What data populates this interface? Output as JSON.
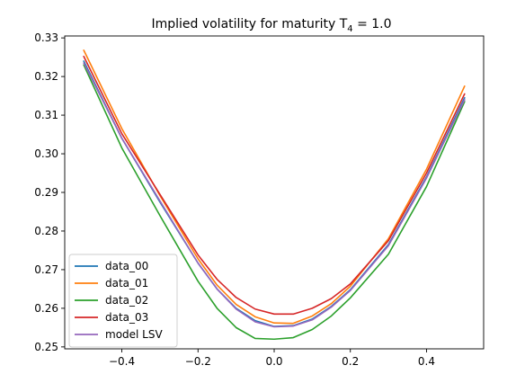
{
  "chart_data": {
    "type": "line",
    "title_prefix": "Implied volatility for maturity T",
    "title_subscript": "4",
    "title_suffix": " = 1.0",
    "xlabel": "",
    "ylabel": "",
    "xlim": [
      -0.55,
      0.55
    ],
    "ylim": [
      0.2495,
      0.3305
    ],
    "xticks": [
      -0.4,
      -0.2,
      0.0,
      0.2,
      0.4
    ],
    "xtick_labels": [
      "−0.4",
      "−0.2",
      "0.0",
      "0.2",
      "0.4"
    ],
    "yticks": [
      0.25,
      0.26,
      0.27,
      0.28,
      0.29,
      0.3,
      0.31,
      0.32,
      0.33
    ],
    "ytick_labels": [
      "0.25",
      "0.26",
      "0.27",
      "0.28",
      "0.29",
      "0.30",
      "0.31",
      "0.32",
      "0.33"
    ],
    "grid": false,
    "legend_position": "lower-left",
    "x": [
      -0.5,
      -0.4,
      -0.3,
      -0.2,
      -0.15,
      -0.1,
      -0.05,
      0.0,
      0.05,
      0.1,
      0.15,
      0.2,
      0.3,
      0.4,
      0.5
    ],
    "series": [
      {
        "name": "data_00",
        "color": "#1f77b4",
        "values": [
          0.324,
          0.304,
          0.2875,
          0.2717,
          0.265,
          0.26,
          0.2568,
          0.2553,
          0.2555,
          0.2572,
          0.2605,
          0.2648,
          0.2765,
          0.294,
          0.3145
        ]
      },
      {
        "name": "data_01",
        "color": "#ff7f0e",
        "values": [
          0.3268,
          0.3065,
          0.2892,
          0.2728,
          0.266,
          0.261,
          0.2578,
          0.2562,
          0.2561,
          0.258,
          0.2612,
          0.2657,
          0.278,
          0.296,
          0.3175
        ]
      },
      {
        "name": "data_02",
        "color": "#2ca02c",
        "values": [
          0.323,
          0.3015,
          0.284,
          0.267,
          0.26,
          0.255,
          0.2522,
          0.252,
          0.2524,
          0.2545,
          0.258,
          0.2627,
          0.274,
          0.2915,
          0.3135
        ]
      },
      {
        "name": "data_03",
        "color": "#d62728",
        "values": [
          0.3252,
          0.3052,
          0.2895,
          0.2738,
          0.2675,
          0.2628,
          0.2598,
          0.2585,
          0.2585,
          0.26,
          0.2625,
          0.2663,
          0.2775,
          0.295,
          0.3155
        ]
      },
      {
        "name": "model LSV",
        "color": "#9467bd",
        "values": [
          0.3235,
          0.304,
          0.2878,
          0.2717,
          0.265,
          0.2598,
          0.2565,
          0.2552,
          0.2554,
          0.257,
          0.2603,
          0.2646,
          0.2762,
          0.2937,
          0.314
        ]
      }
    ]
  }
}
